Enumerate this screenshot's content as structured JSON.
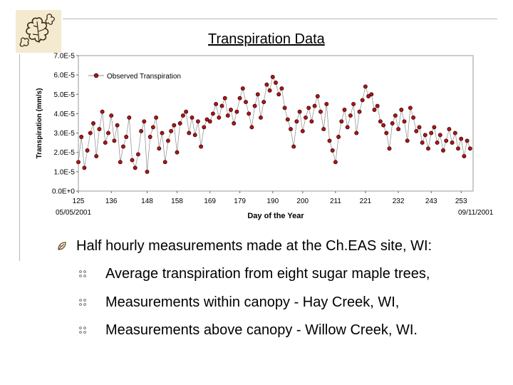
{
  "slide": {
    "title": "Transpiration Data",
    "date_start": "05/05/2001",
    "date_end": "09/11/2001",
    "bullet_main": "Half hourly measurements made at the Ch.EAS site, WI:",
    "sub_bullets": [
      "Average transpiration from eight sugar maple trees,",
      "Measurements within canopy - Hay Creek, WI,",
      "Measurements above canopy - Willow Creek, WI."
    ]
  },
  "colors": {
    "marker_fill": "#b01515",
    "marker_edge": "#2a0000",
    "line": "#8a8a8a",
    "rule": "#b7b7b7"
  },
  "icons": {
    "logo": "oak-leaf-icon",
    "bullet_main": "leaf-bullet-icon",
    "bullet_sub": "dots-bullet-icon"
  },
  "chart_data": {
    "type": "scatter",
    "xlabel": "Day of the Year",
    "ylabel": "Transpiration (mm/s)",
    "xlim": [
      125,
      257
    ],
    "ylim": [
      0,
      7e-05
    ],
    "x_ticks": [
      "125",
      "136",
      "148",
      "158",
      "169",
      "179",
      "190",
      "200",
      "211",
      "221",
      "232",
      "243",
      "253"
    ],
    "y_ticks": [
      "0.0E+0",
      "1.0E-5",
      "2.0E-5",
      "3.0E-5",
      "4.0E-5",
      "5.0E-5",
      "6.0E-5",
      "7.0E-5"
    ],
    "legend": {
      "position": "top-left",
      "entries": [
        "Observed Transpiration"
      ]
    },
    "series": [
      {
        "name": "Observed Transpiration",
        "x": [
          125,
          126,
          127,
          128,
          129,
          130,
          131,
          132,
          133,
          134,
          135,
          136,
          137,
          138,
          139,
          140,
          141,
          142,
          143,
          144,
          145,
          146,
          147,
          148,
          149,
          150,
          151,
          152,
          153,
          154,
          155,
          156,
          157,
          158,
          159,
          160,
          161,
          162,
          163,
          164,
          165,
          166,
          167,
          168,
          169,
          170,
          171,
          172,
          173,
          174,
          175,
          176,
          177,
          178,
          179,
          180,
          181,
          182,
          183,
          184,
          185,
          186,
          187,
          188,
          189,
          190,
          191,
          192,
          193,
          194,
          195,
          196,
          197,
          198,
          199,
          200,
          201,
          202,
          203,
          204,
          205,
          206,
          207,
          208,
          209,
          210,
          211,
          212,
          213,
          214,
          215,
          216,
          217,
          218,
          219,
          220,
          221,
          222,
          223,
          224,
          225,
          226,
          227,
          228,
          229,
          230,
          231,
          232,
          233,
          234,
          235,
          236,
          237,
          238,
          239,
          240,
          241,
          242,
          243,
          244,
          245,
          246,
          247,
          248,
          249,
          250,
          251,
          252,
          253,
          254,
          255,
          256
        ],
        "y": [
          1.5e-05,
          2.8e-05,
          1.2e-05,
          2.1e-05,
          3e-05,
          3.5e-05,
          1.8e-05,
          3.2e-05,
          4.1e-05,
          2.5e-05,
          3e-05,
          3.9e-05,
          2.6e-05,
          3.4e-05,
          1.5e-05,
          2.3e-05,
          2.8e-05,
          3.8e-05,
          1.6e-05,
          1.2e-05,
          1.9e-05,
          3.1e-05,
          3.6e-05,
          1e-05,
          2.8e-05,
          3.3e-05,
          3.8e-05,
          2.2e-05,
          3e-05,
          1.5e-05,
          2.6e-05,
          3.1e-05,
          3.4e-05,
          2e-05,
          3.5e-05,
          3.9e-05,
          4.1e-05,
          3e-05,
          3.8e-05,
          2.9e-05,
          3.6e-05,
          2.3e-05,
          3.3e-05,
          3.7e-05,
          3.6e-05,
          4e-05,
          4.5e-05,
          3.8e-05,
          4.4e-05,
          4.8e-05,
          3.9e-05,
          4.2e-05,
          3.5e-05,
          4.1e-05,
          4.8e-05,
          5.3e-05,
          4.6e-05,
          4e-05,
          3.3e-05,
          4.4e-05,
          5e-05,
          3.8e-05,
          4.6e-05,
          5.5e-05,
          5.2e-05,
          5.9e-05,
          5.6e-05,
          5e-05,
          5.3e-05,
          4.3e-05,
          3.7e-05,
          3.2e-05,
          2.3e-05,
          3.6e-05,
          4.1e-05,
          3.1e-05,
          3.8e-05,
          4.3e-05,
          3.6e-05,
          4.4e-05,
          4.9e-05,
          4.1e-05,
          3.2e-05,
          4.5e-05,
          2.6e-05,
          2.1e-05,
          1.5e-05,
          2.8e-05,
          3.6e-05,
          4.2e-05,
          3.3e-05,
          3.9e-05,
          4.5e-05,
          3e-05,
          4.1e-05,
          4.7e-05,
          5.4e-05,
          4.9e-05,
          5e-05,
          4.2e-05,
          4.4e-05,
          3.6e-05,
          3.4e-05,
          3e-05,
          2.2e-05,
          3.5e-05,
          3.9e-05,
          3.2e-05,
          4.2e-05,
          3.6e-05,
          2.6e-05,
          4.3e-05,
          3.8e-05,
          3.1e-05,
          3.3e-05,
          2.5e-05,
          2.9e-05,
          2.2e-05,
          3e-05,
          3.3e-05,
          2.5e-05,
          2.9e-05,
          2.1e-05,
          2.6e-05,
          3.2e-05,
          2.5e-05,
          3e-05,
          2.2e-05,
          2.7e-05,
          1.8e-05,
          2.6e-05,
          2.2e-05
        ]
      }
    ]
  }
}
